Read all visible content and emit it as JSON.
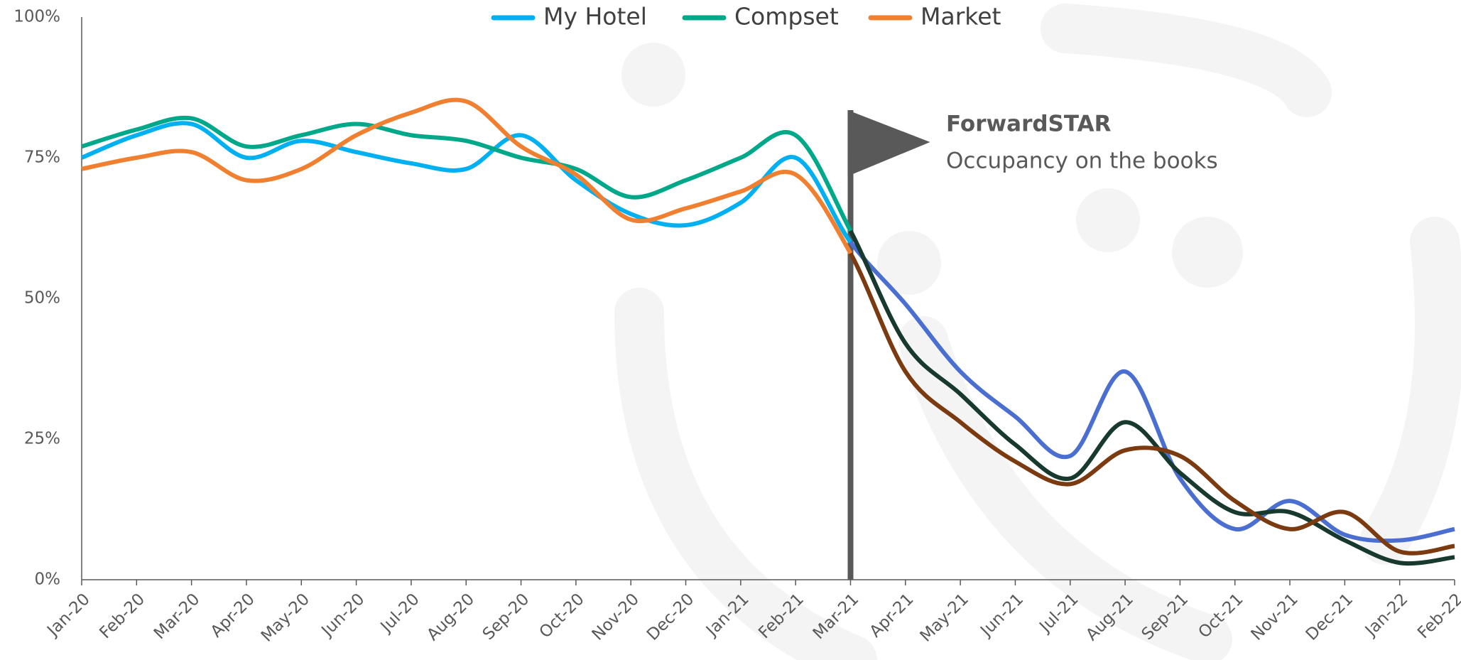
{
  "chart_data": {
    "type": "line",
    "categories": [
      "Jan-20",
      "Feb-20",
      "Mar-20",
      "Apr-20",
      "May-20",
      "Jun-20",
      "Jul-20",
      "Aug-20",
      "Sep-20",
      "Oct-20",
      "Nov-20",
      "Dec-20",
      "Jan-21",
      "Feb-21",
      "Mar-21",
      "Apr-21",
      "May-21",
      "Jun-21",
      "Jul-21",
      "Aug-21",
      "Sep-21",
      "Oct-21",
      "Nov-21",
      "Dec-21",
      "Jan-22",
      "Feb-22"
    ],
    "series": [
      {
        "name": "My Hotel",
        "color": "#00b0f0",
        "forward_color": "#4a6fd0",
        "values": [
          75,
          79,
          81,
          75,
          78,
          76,
          74,
          73,
          79,
          71,
          65,
          63,
          67,
          75,
          60,
          49,
          37,
          29,
          22,
          37,
          18,
          9,
          14,
          8,
          7,
          9
        ]
      },
      {
        "name": "Compset",
        "color": "#00a88a",
        "forward_color": "#17392e",
        "values": [
          77,
          80,
          82,
          77,
          79,
          81,
          79,
          78,
          75,
          73,
          68,
          71,
          75,
          79,
          62,
          42,
          33,
          24,
          18,
          28,
          19,
          12,
          12,
          7,
          3,
          4
        ]
      },
      {
        "name": "Market",
        "color": "#f08030",
        "forward_color": "#7b3a10",
        "values": [
          73,
          75,
          76,
          71,
          73,
          79,
          83,
          85,
          77,
          72,
          64,
          66,
          69,
          72,
          58,
          37,
          28,
          21,
          17,
          23,
          22,
          14,
          9,
          12,
          5,
          6
        ]
      }
    ],
    "ylim": [
      0,
      100
    ],
    "yticks": [
      {
        "value": 0,
        "label": "0%"
      },
      {
        "value": 25,
        "label": "25%"
      },
      {
        "value": 50,
        "label": "50%"
      },
      {
        "value": 75,
        "label": "75%"
      },
      {
        "value": 100,
        "label": "100%"
      }
    ],
    "grid": false,
    "legend": "top",
    "annotation": {
      "title": "ForwardSTAR",
      "text": "Occupancy on the books",
      "category": "Mar-21"
    }
  }
}
